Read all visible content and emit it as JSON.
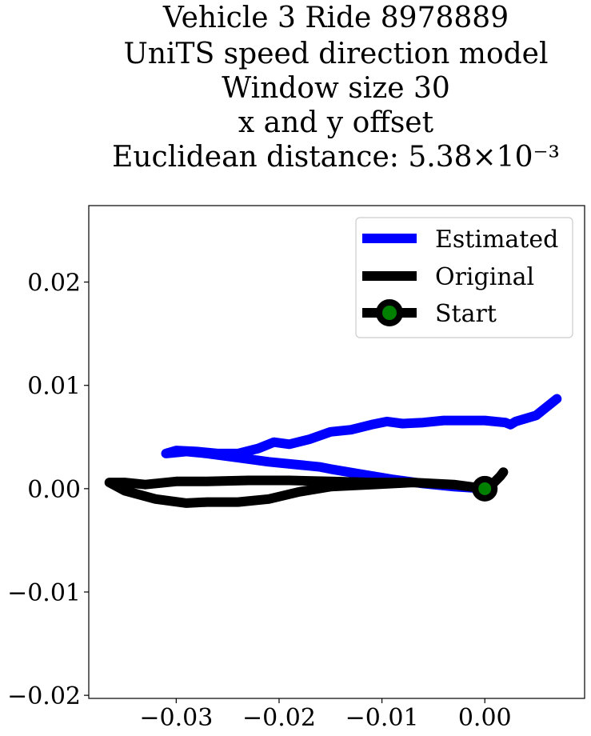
{
  "chart_data": {
    "type": "line",
    "title_lines": [
      "Vehicle 3 Ride 8978889",
      "UniTS speed direction model",
      "Window size 30",
      "x and y offset",
      "Euclidean distance: 5.38×10⁻³"
    ],
    "xlabel": "",
    "ylabel": "",
    "xlim": [
      -0.0385,
      0.0097
    ],
    "ylim": [
      -0.0203,
      0.0274
    ],
    "x_ticks": [
      -0.03,
      -0.02,
      -0.01,
      0.0
    ],
    "x_tick_labels": [
      "−0.03",
      "−0.02",
      "−0.01",
      "0.00"
    ],
    "y_ticks": [
      -0.02,
      -0.01,
      0.0,
      0.01,
      0.02
    ],
    "y_tick_labels": [
      "−0.02",
      "−0.01",
      "0.00",
      "0.01",
      "0.02"
    ],
    "grid": false,
    "legend_position": "top-right",
    "series": [
      {
        "name": "Estimated",
        "color": "#0000ff",
        "x": [
          0.0,
          -0.003,
          -0.006,
          -0.009,
          -0.012,
          -0.015,
          -0.016,
          -0.018,
          -0.021,
          -0.024,
          -0.027,
          -0.029,
          -0.031,
          -0.03,
          -0.028,
          -0.026,
          -0.024,
          -0.022,
          -0.0205,
          -0.019,
          -0.017,
          -0.015,
          -0.013,
          -0.011,
          -0.0095,
          -0.008,
          -0.006,
          -0.004,
          -0.002,
          0.0,
          0.002,
          0.0025,
          0.003,
          0.005,
          0.007
        ],
        "y": [
          0.0,
          0.0002,
          0.0005,
          0.0009,
          0.0014,
          0.0019,
          0.0021,
          0.0023,
          0.0026,
          0.003,
          0.0034,
          0.0036,
          0.0034,
          0.0037,
          0.0036,
          0.0034,
          0.0034,
          0.0039,
          0.0045,
          0.0043,
          0.0048,
          0.0055,
          0.0057,
          0.0062,
          0.0065,
          0.0063,
          0.0064,
          0.0066,
          0.0066,
          0.0066,
          0.0064,
          0.0062,
          0.0065,
          0.0071,
          0.0087
        ]
      },
      {
        "name": "Original",
        "color": "#000000",
        "x": [
          0.0018,
          0.0015,
          0.0008,
          0.0,
          -0.003,
          -0.007,
          -0.011,
          -0.015,
          -0.019,
          -0.023,
          -0.027,
          -0.03,
          -0.033,
          -0.035,
          -0.0365,
          -0.035,
          -0.032,
          -0.029,
          -0.027,
          -0.024,
          -0.021,
          -0.018,
          -0.015,
          -0.011,
          -0.007,
          -0.003,
          0.0
        ],
        "y": [
          0.0016,
          0.0012,
          0.0005,
          0.0,
          0.0004,
          0.0006,
          0.0006,
          0.0007,
          0.0008,
          0.0008,
          0.0007,
          0.0007,
          0.0004,
          0.0006,
          0.0006,
          -0.0002,
          -0.001,
          -0.0014,
          -0.0013,
          -0.0013,
          -0.001,
          -0.0003,
          0.0002,
          0.0004,
          0.0006,
          0.0004,
          0.0
        ]
      }
    ],
    "start_point": {
      "name": "Start",
      "x": 0.0,
      "y": 0.0,
      "outer_color": "#000000",
      "inner_color": "#008000"
    },
    "legend_items": [
      "Estimated",
      "Original",
      "Start"
    ]
  }
}
